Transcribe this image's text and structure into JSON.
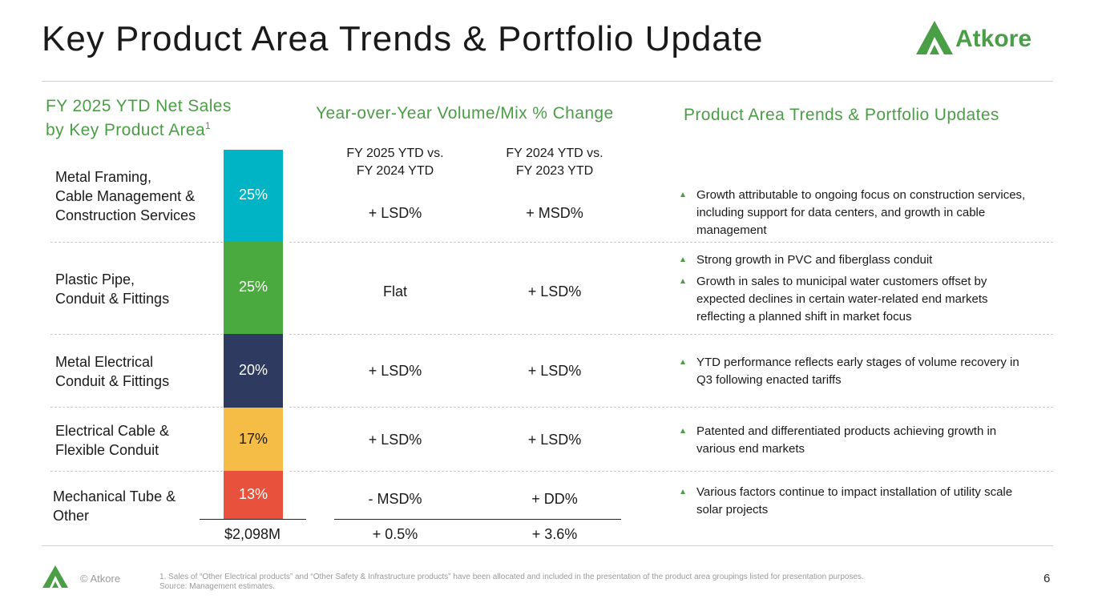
{
  "title": "Key Product Area Trends & Portfolio Update",
  "logo": {
    "text": "Atkore",
    "color": "#4a9e45"
  },
  "left_header": {
    "line1": "FY 2025 YTD Net Sales",
    "line2": "by Key Product Area",
    "sup": "1"
  },
  "mid_header": "Year-over-Year Volume/Mix % Change",
  "right_header": "Product Area Trends & Portfolio Updates",
  "col_headers": [
    {
      "line1": "FY 2025 YTD vs.",
      "line2": "FY 2024 YTD"
    },
    {
      "line1": "FY 2024 YTD vs.",
      "line2": "FY 2023 YTD"
    }
  ],
  "rows": [
    {
      "label_lines": [
        "Metal Framing,",
        "Cable Management &",
        "Construction Services"
      ],
      "share": "25%",
      "color": "#00b4c5",
      "fy25": "+ LSD%",
      "fy24": "+ MSD%",
      "bullets": [
        "Growth attributable to ongoing focus on construction services, including support for data centers, and growth in cable management"
      ]
    },
    {
      "label_lines": [
        "Plastic Pipe,",
        "Conduit & Fittings"
      ],
      "share": "25%",
      "color": "#4aa93f",
      "fy25": "Flat",
      "fy24": "+ LSD%",
      "bullets": [
        "Strong growth in PVC and fiberglass conduit",
        "Growth in sales to municipal water customers offset by expected declines in certain water-related end markets reflecting a planned shift in market focus"
      ]
    },
    {
      "label_lines": [
        "Metal Electrical",
        "Conduit & Fittings"
      ],
      "share": "20%",
      "color": "#2e3a5f",
      "fy25": "+ LSD%",
      "fy24": "+ LSD%",
      "bullets": [
        "YTD performance reflects early stages of volume recovery in Q3 following enacted tariffs"
      ]
    },
    {
      "label_lines": [
        "Electrical Cable &",
        "Flexible Conduit"
      ],
      "share": "17%",
      "color": "#f5bd45",
      "fy25": "+ LSD%",
      "fy24": "+ LSD%",
      "bullets": [
        "Patented and differentiated products achieving growth in various end markets"
      ]
    },
    {
      "label_lines": [
        "Mechanical Tube &",
        "Other"
      ],
      "share": "13%",
      "color": "#e8513b",
      "fy25": "- MSD%",
      "fy24": "+ DD%",
      "bullets": [
        "Various factors continue to impact installation of utility scale solar projects"
      ]
    }
  ],
  "totals": {
    "net_sales": "$2,098M",
    "fy25": "+ 0.5%",
    "fy24": "+ 3.6%"
  },
  "footer": {
    "copyright": "© Atkore",
    "footnote": "1.     Sales of “Other Electrical products” and “Other Safety & Infrastructure products” have been allocated and included in the presentation of the product area groupings listed for presentation purposes.",
    "source": "Source: Management estimates.",
    "page_number": "6"
  }
}
